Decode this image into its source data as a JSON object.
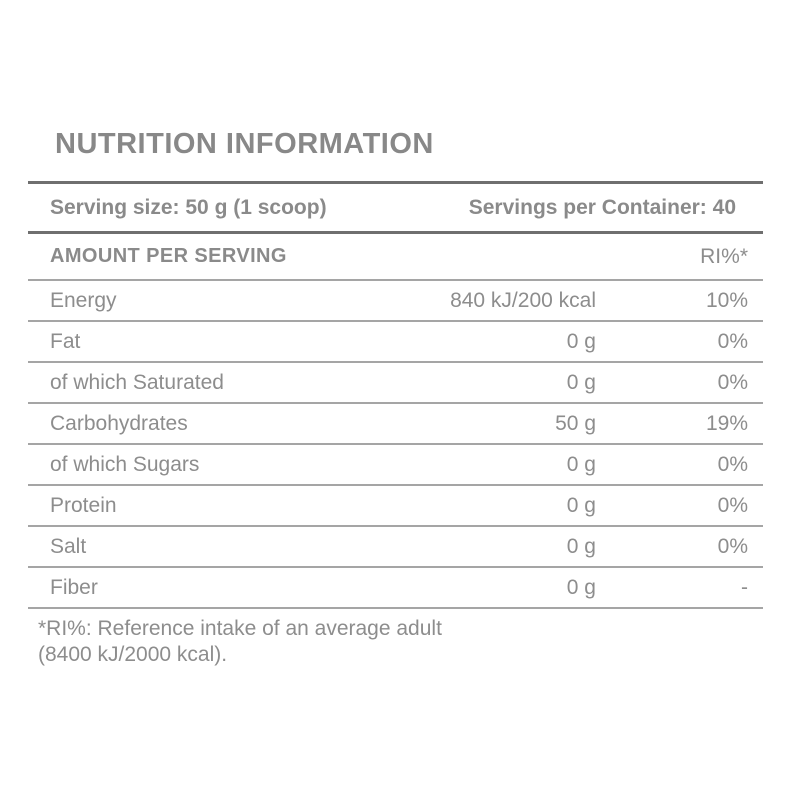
{
  "label": {
    "title": "NUTRITION INFORMATION",
    "serving": {
      "size": "Serving size: 50 g (1 scoop)",
      "per_container": "Servings per Container: 40"
    },
    "columns": {
      "amount_header": "AMOUNT PER SERVING",
      "ri_header": "RI%*"
    },
    "rows": [
      {
        "name": "Energy",
        "amount": "840 kJ/200 kcal",
        "ri": "10%"
      },
      {
        "name": "Fat",
        "amount": "0 g",
        "ri": "0%"
      },
      {
        "name": "of which Saturated",
        "amount": "0 g",
        "ri": "0%"
      },
      {
        "name": "Carbohydrates",
        "amount": "50 g",
        "ri": "19%"
      },
      {
        "name": "of which Sugars",
        "amount": "0 g",
        "ri": "0%"
      },
      {
        "name": "Protein",
        "amount": "0 g",
        "ri": "0%"
      },
      {
        "name": "Salt",
        "amount": "0 g",
        "ri": "0%"
      },
      {
        "name": "Fiber",
        "amount": "0 g",
        "ri": "-"
      }
    ],
    "footnote_line1": "*RI%: Reference intake of an average adult",
    "footnote_line2": "(8400 kJ/2000 kcal).",
    "colors": {
      "text": "#8d8d8d",
      "heading_text": "#888888",
      "thick_rule": "#6f6f6f",
      "thin_rule": "#a5a5a5",
      "background": "#ffffff"
    }
  }
}
